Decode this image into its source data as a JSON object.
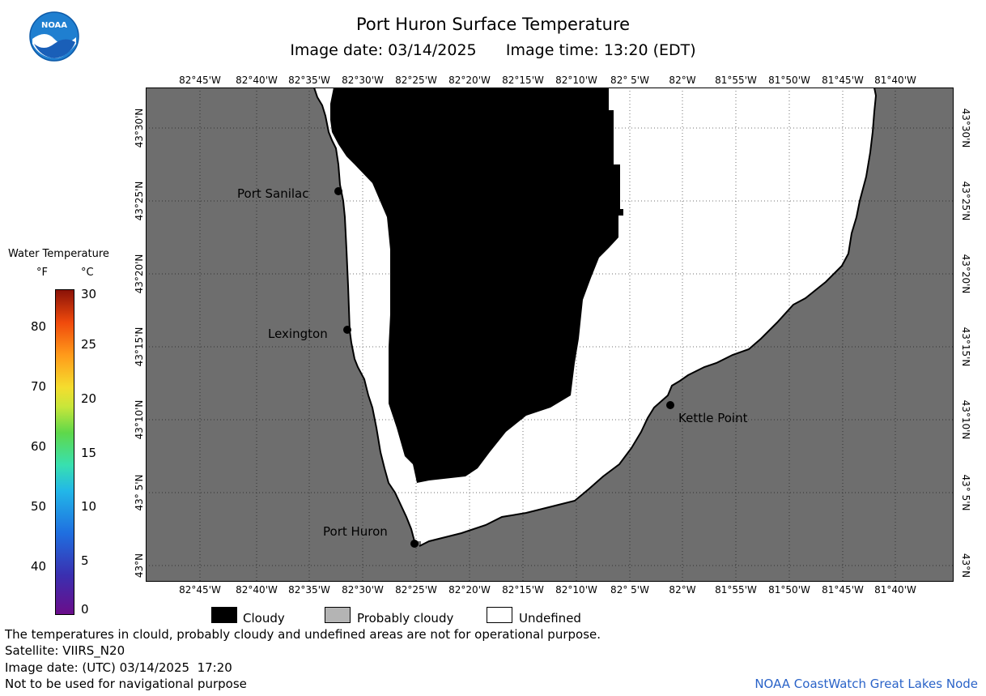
{
  "header": {
    "title": "Port Huron Surface Temperature",
    "image_date_label": "Image date: 03/14/2025",
    "image_time_label": "Image time: 13:20 (EDT)"
  },
  "logo": {
    "text": "NOAA",
    "icon": "noaa-logo-icon"
  },
  "map": {
    "longitude_labels": [
      "82°45'W",
      "82°40'W",
      "82°35'W",
      "82°30'W",
      "82°25'W",
      "82°20'W",
      "82°15'W",
      "82°10'W",
      "82° 5'W",
      "82°W",
      "81°55'W",
      "81°50'W",
      "81°45'W",
      "81°40'W"
    ],
    "latitude_labels": [
      "43°N",
      "43° 5'N",
      "43°10'N",
      "43°15'N",
      "43°20'N",
      "43°25'N",
      "43°30'N"
    ],
    "places": [
      {
        "name": "Port Sanilac"
      },
      {
        "name": "Lexington"
      },
      {
        "name": "Kettle Point"
      },
      {
        "name": "Port Huron"
      }
    ],
    "colors": {
      "land": "#6e6e6e",
      "cloudy": "#000000",
      "undefined": "#ffffff",
      "probably_cloudy": "#b4b4b4"
    }
  },
  "legend": {
    "title": "Water Temperature",
    "unit_f": "°F",
    "unit_c": "°C",
    "fahrenheit_ticks": [
      "80",
      "70",
      "60",
      "50",
      "40"
    ],
    "celsius_ticks": [
      "30",
      "25",
      "20",
      "15",
      "10",
      "5",
      "0"
    ]
  },
  "key": {
    "items": [
      {
        "label": "Cloudy",
        "color": "#000000"
      },
      {
        "label": "Probably cloudy",
        "color": "#b4b4b4"
      },
      {
        "label": "Undefined",
        "color": "#ffffff"
      }
    ]
  },
  "footer": {
    "disclaimer": "The temperatures in clould, probably cloudy and undefined areas are not for operational purpose.",
    "satellite": "Satellite: VIIRS_N20",
    "utc_date": "Image date: (UTC) 03/14/2025  17:20",
    "nav_warning": "Not to be used for navigational purpose",
    "credit": "NOAA CoastWatch Great Lakes Node"
  }
}
